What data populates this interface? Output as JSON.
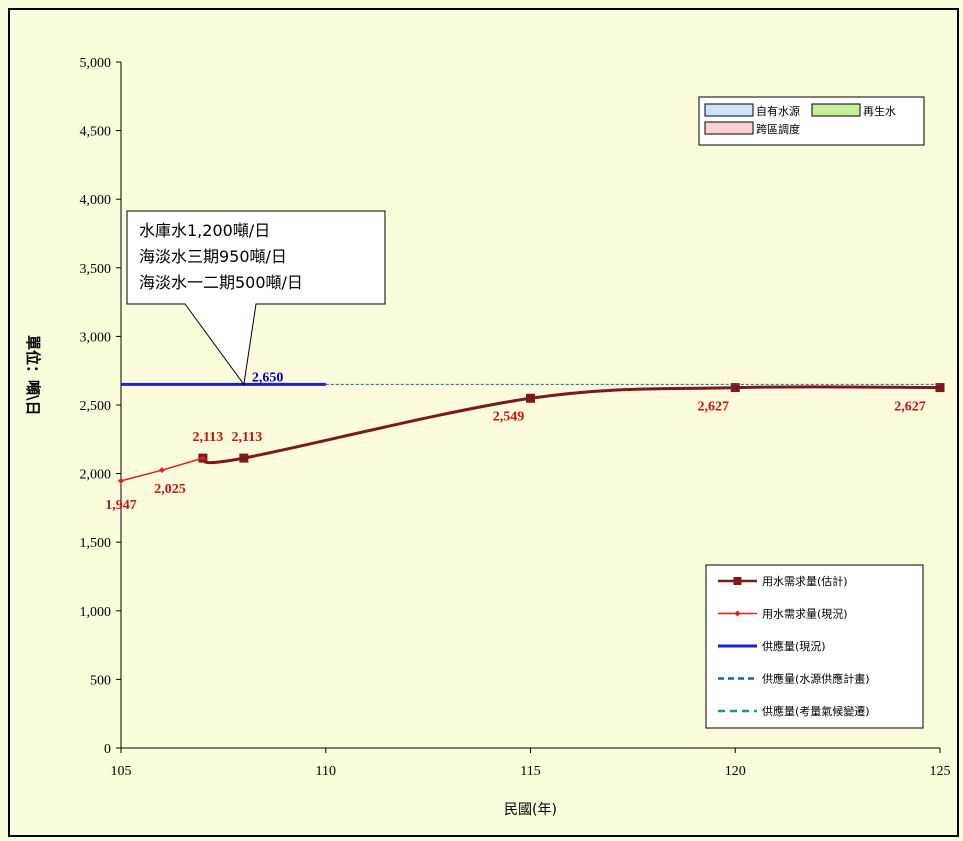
{
  "chart_data": {
    "type": "line",
    "xlabel": "民國(年)",
    "ylabel": "單位：噸\\日",
    "xlim": [
      105,
      125
    ],
    "ylim": [
      0,
      5000
    ],
    "x_ticks": [
      "105",
      "110",
      "115",
      "120",
      "125"
    ],
    "y_ticks": [
      "0",
      "500",
      "1,000",
      "1,500",
      "2,000",
      "2,500",
      "3,000",
      "3,500",
      "4,000",
      "4,500",
      "5,000"
    ],
    "grid": false,
    "series": [
      {
        "name": "用水需求量(估計)",
        "color": "#7b1a1a",
        "style": "smooth-line-square-markers",
        "x": [
          107,
          108,
          115,
          120,
          125
        ],
        "y": [
          2113,
          2113,
          2549,
          2627,
          2627
        ]
      },
      {
        "name": "用水需求量(現況)",
        "color": "#e02020",
        "style": "line-diamond-markers",
        "x": [
          105,
          106,
          107
        ],
        "y": [
          1947,
          2025,
          2113
        ]
      },
      {
        "name": "供應量(現況)",
        "color": "#1f1fcc",
        "style": "solid-thick",
        "x": [
          105,
          110
        ],
        "y": [
          2650,
          2650
        ]
      },
      {
        "name": "供應量(水源供應計畫)",
        "color": "#1f5fb0",
        "style": "dashed",
        "x": [
          110,
          125
        ],
        "y": [
          2650,
          2650
        ]
      },
      {
        "name": "供應量(考量氣候變遷)",
        "color": "#1aa060",
        "style": "dashed",
        "x": [],
        "y": []
      }
    ],
    "data_labels": [
      {
        "text": "1,947",
        "x": 105,
        "y": 1947,
        "color": "red"
      },
      {
        "text": "2,025",
        "x": 106,
        "y": 2025,
        "color": "red"
      },
      {
        "text": "2,113",
        "x": 107,
        "y": 2113,
        "color": "red"
      },
      {
        "text": "2,113",
        "x": 108,
        "y": 2113,
        "color": "red"
      },
      {
        "text": "2,549",
        "x": 115,
        "y": 2549,
        "color": "red"
      },
      {
        "text": "2,627",
        "x": 120,
        "y": 2627,
        "color": "red"
      },
      {
        "text": "2,627",
        "x": 125,
        "y": 2627,
        "color": "red"
      },
      {
        "text": "2,650",
        "x": 108,
        "y": 2650,
        "color": "blue"
      }
    ],
    "area_legend": [
      {
        "name": "自有水源",
        "color": "#c8e6f8"
      },
      {
        "name": "再生水",
        "color": "#c6ef9a"
      },
      {
        "name": "跨區調度",
        "color": "#ffd0d0"
      }
    ],
    "callout": {
      "lines": [
        "水庫水1,200噸/日",
        "海淡水三期950噸/日",
        "海淡水一二期500噸/日"
      ],
      "points_to": {
        "x": 108,
        "y": 2650
      }
    },
    "legend_position": "bottom-right"
  }
}
